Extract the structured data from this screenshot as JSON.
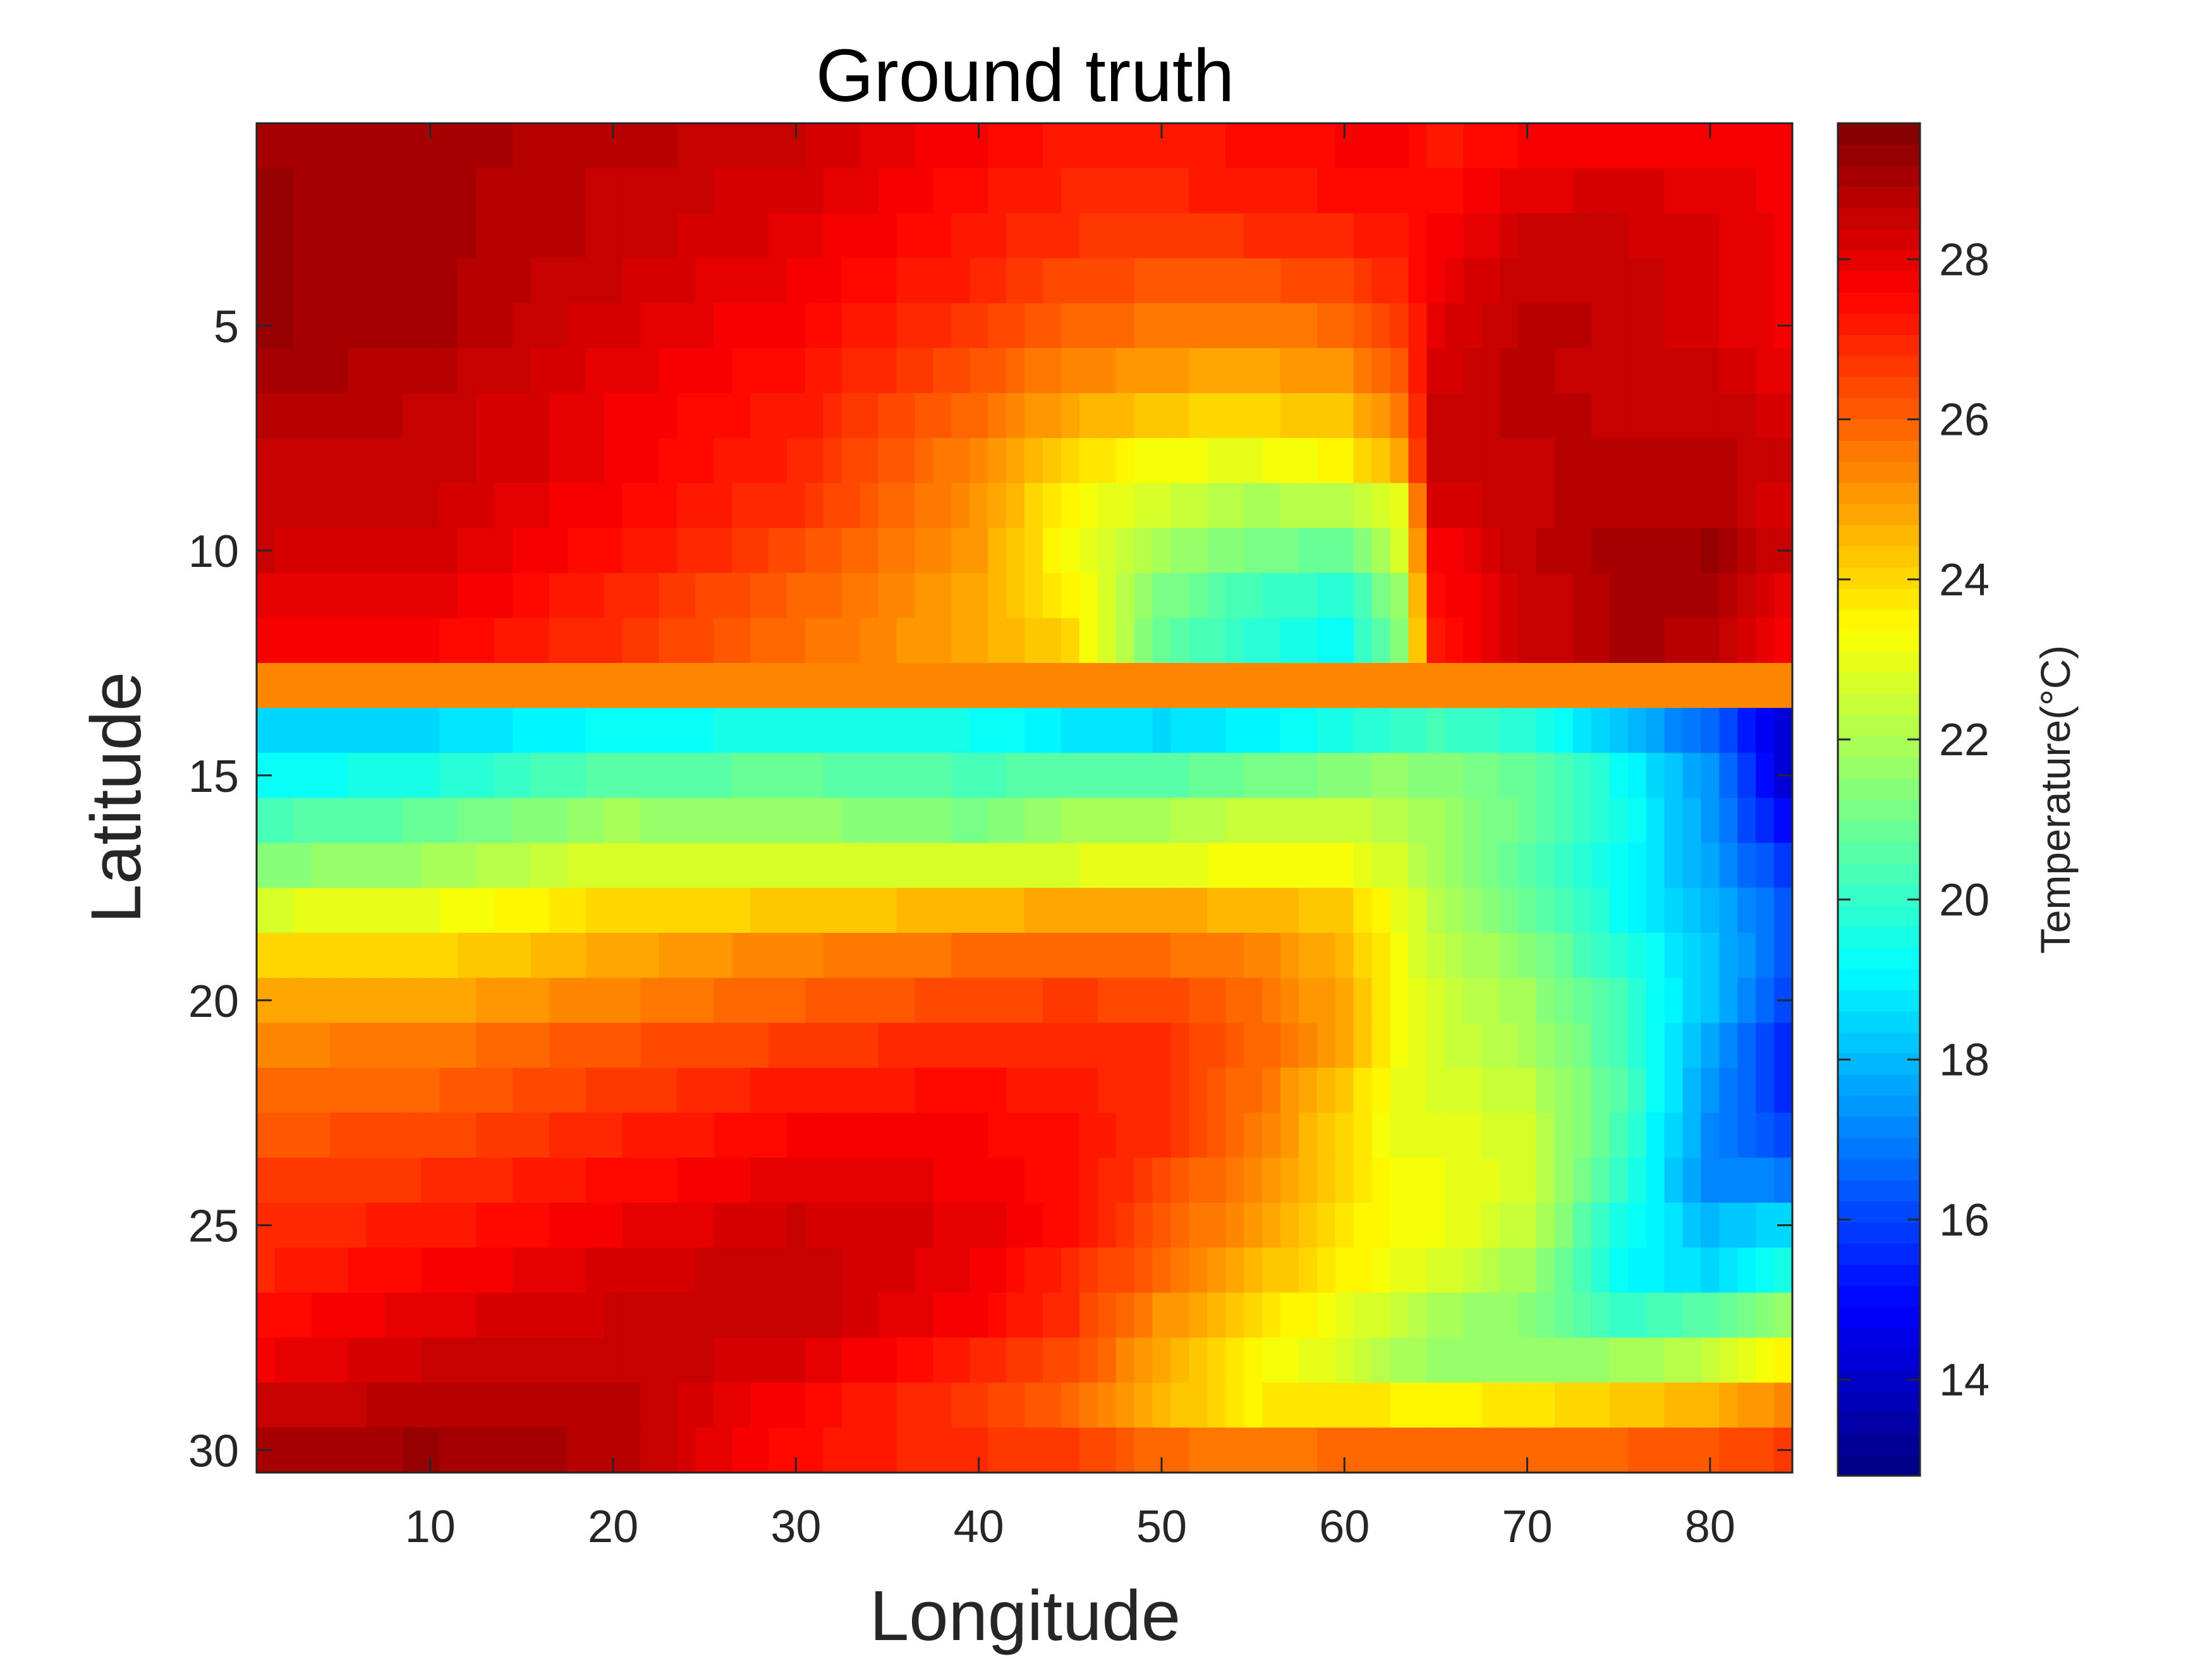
{
  "chart_data": {
    "type": "heatmap",
    "title": "Ground truth",
    "xlabel": "Longitude",
    "ylabel": "Latitude",
    "colorbar_label": "Temperature(°C)",
    "colormap": "jet",
    "n_cols": 84,
    "n_rows": 30,
    "xlim": [
      0.5,
      84.5
    ],
    "ylim": [
      0.5,
      30.5
    ],
    "y_direction": "reversed",
    "clim": [
      12.8,
      29.7
    ],
    "x_ticks": [
      10,
      20,
      30,
      40,
      50,
      60,
      70,
      80
    ],
    "y_ticks": [
      5,
      10,
      15,
      20,
      25,
      30
    ],
    "colorbar_ticks": [
      14,
      16,
      18,
      20,
      22,
      24,
      26,
      28
    ],
    "row_anchor_columns": [
      1,
      10,
      20,
      30,
      40,
      45,
      50,
      55,
      60,
      63,
      65,
      70,
      75,
      80,
      84
    ],
    "rows": [
      [
        29.0,
        29.0,
        28.8,
        28.4,
        27.6,
        27.2,
        27.2,
        27.4,
        27.6,
        27.6,
        27.2,
        27.6,
        27.8,
        27.8,
        27.8
      ],
      [
        29.2,
        29.0,
        28.6,
        28.2,
        27.4,
        27.0,
        27.0,
        27.2,
        27.4,
        27.4,
        27.4,
        28.0,
        28.2,
        28.0,
        27.8
      ],
      [
        29.2,
        29.0,
        28.6,
        28.0,
        27.2,
        26.8,
        26.6,
        26.8,
        27.0,
        27.2,
        27.6,
        28.4,
        28.4,
        28.2,
        27.8
      ],
      [
        29.2,
        29.0,
        28.4,
        27.8,
        27.0,
        26.4,
        26.2,
        26.2,
        26.4,
        27.0,
        27.8,
        28.6,
        28.6,
        28.2,
        27.8
      ],
      [
        29.2,
        29.0,
        28.2,
        27.6,
        26.6,
        26.0,
        25.6,
        25.6,
        25.8,
        26.6,
        28.0,
        28.8,
        28.6,
        28.2,
        27.8
      ],
      [
        29.0,
        28.8,
        28.0,
        27.4,
        26.2,
        25.4,
        25.0,
        24.8,
        25.2,
        26.2,
        28.2,
        28.8,
        28.4,
        28.4,
        28.0
      ],
      [
        28.8,
        28.6,
        27.8,
        27.2,
        25.8,
        24.8,
        24.2,
        24.0,
        24.4,
        25.6,
        28.4,
        28.8,
        28.6,
        28.6,
        28.2
      ],
      [
        28.6,
        28.6,
        27.8,
        27.0,
        25.4,
        24.0,
        23.2,
        23.0,
        23.6,
        24.8,
        28.4,
        28.6,
        28.8,
        28.8,
        28.4
      ],
      [
        28.6,
        28.4,
        27.6,
        26.8,
        25.2,
        23.4,
        22.6,
        22.0,
        22.2,
        23.0,
        28.2,
        28.6,
        28.8,
        28.8,
        28.2
      ],
      [
        28.4,
        28.2,
        27.4,
        26.4,
        25.0,
        23.2,
        21.8,
        21.2,
        20.8,
        22.6,
        27.6,
        28.6,
        29.0,
        29.2,
        28.4
      ],
      [
        28.0,
        28.0,
        27.0,
        26.0,
        24.8,
        23.6,
        21.2,
        20.2,
        19.8,
        21.6,
        27.4,
        28.4,
        29.0,
        29.0,
        28.0
      ],
      [
        27.6,
        27.6,
        26.8,
        25.8,
        24.8,
        24.0,
        20.8,
        19.8,
        19.2,
        21.4,
        27.2,
        28.4,
        29.0,
        28.8,
        27.8
      ],
      [
        25.4,
        25.4,
        25.4,
        25.4,
        25.4,
        25.4,
        25.4,
        25.4,
        25.4,
        25.4,
        25.4,
        25.4,
        25.4,
        25.4,
        25.4
      ],
      [
        18.4,
        18.6,
        19.2,
        19.6,
        19.4,
        18.8,
        18.6,
        19.0,
        19.6,
        20.0,
        20.2,
        19.8,
        18.2,
        16.6,
        14.2
      ],
      [
        19.2,
        19.6,
        20.6,
        20.8,
        20.4,
        20.6,
        20.6,
        21.0,
        21.4,
        21.6,
        21.4,
        20.8,
        19.4,
        17.4,
        14.2
      ],
      [
        20.4,
        20.8,
        21.8,
        21.6,
        21.2,
        21.8,
        22.0,
        22.4,
        22.4,
        22.2,
        21.8,
        20.8,
        19.6,
        17.4,
        15.0
      ],
      [
        21.4,
        21.8,
        22.8,
        22.8,
        22.6,
        22.8,
        23.0,
        23.2,
        23.2,
        22.6,
        21.8,
        20.6,
        19.4,
        17.6,
        15.8
      ],
      [
        22.8,
        23.0,
        24.0,
        24.2,
        24.6,
        24.8,
        24.8,
        24.6,
        24.2,
        23.0,
        22.2,
        20.8,
        19.4,
        18.0,
        16.4
      ],
      [
        24.0,
        24.0,
        24.8,
        25.4,
        25.8,
        26.0,
        25.8,
        25.4,
        24.6,
        23.2,
        22.4,
        21.4,
        19.8,
        18.2,
        16.4
      ],
      [
        24.8,
        24.8,
        25.4,
        26.0,
        26.4,
        26.6,
        26.4,
        25.8,
        24.8,
        23.2,
        22.6,
        21.8,
        20.2,
        18.2,
        16.0
      ],
      [
        25.4,
        25.6,
        26.2,
        26.6,
        27.0,
        27.0,
        26.8,
        26.0,
        24.8,
        23.2,
        22.6,
        22.0,
        20.4,
        17.8,
        15.6
      ],
      [
        25.8,
        26.0,
        26.6,
        27.2,
        27.4,
        27.2,
        26.8,
        25.8,
        24.2,
        23.0,
        22.8,
        22.4,
        20.6,
        17.4,
        15.6
      ],
      [
        26.2,
        26.4,
        27.0,
        27.6,
        27.6,
        27.4,
        26.8,
        25.6,
        24.0,
        23.0,
        23.0,
        22.6,
        20.4,
        17.2,
        16.0
      ],
      [
        26.6,
        26.8,
        27.4,
        28.0,
        27.8,
        27.4,
        26.4,
        25.4,
        24.0,
        23.2,
        23.2,
        22.6,
        20.0,
        17.2,
        17.0
      ],
      [
        26.8,
        27.2,
        27.8,
        28.4,
        28.0,
        27.4,
        26.2,
        25.0,
        23.8,
        23.2,
        23.2,
        22.4,
        19.6,
        18.0,
        18.6
      ],
      [
        27.0,
        27.6,
        28.2,
        28.6,
        27.8,
        27.0,
        25.8,
        24.6,
        23.6,
        23.0,
        22.8,
        21.8,
        19.2,
        18.6,
        19.6
      ],
      [
        27.4,
        28.0,
        28.4,
        28.6,
        27.6,
        26.8,
        25.2,
        24.0,
        23.0,
        22.4,
        22.0,
        21.4,
        20.0,
        20.6,
        21.6
      ],
      [
        27.8,
        28.4,
        28.6,
        28.2,
        27.0,
        26.4,
        24.8,
        23.4,
        22.8,
        22.0,
        21.6,
        21.6,
        21.8,
        22.4,
        23.6
      ],
      [
        28.4,
        28.8,
        28.8,
        27.6,
        26.6,
        26.0,
        24.6,
        23.6,
        23.8,
        23.6,
        23.4,
        23.8,
        24.2,
        24.6,
        25.4
      ],
      [
        29.0,
        29.2,
        28.8,
        27.4,
        26.8,
        26.6,
        25.8,
        25.6,
        25.8,
        26.0,
        26.0,
        26.0,
        26.0,
        26.2,
        26.6
      ]
    ]
  }
}
